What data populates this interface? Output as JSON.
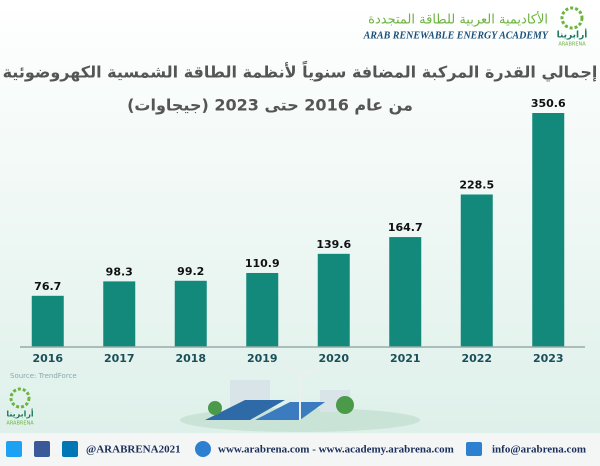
{
  "header": {
    "academy_ar": "الأكاديمية العربية للطاقة المتجددة",
    "academy_en": "ARAB RENEWABLE ENERGY ACADEMY",
    "logo_ar": "أرابرينا",
    "logo_en": "ARABRENA"
  },
  "chart_data": {
    "type": "bar",
    "title": "إجمالي القدرة المركبة المضافة سنوياً لأنظمة الطاقة الشمسية الكهروضوئية",
    "subtitle": "من عام 2016 حتى 2023 (جيجاوات)",
    "categories": [
      "2016",
      "2017",
      "2018",
      "2019",
      "2020",
      "2021",
      "2022",
      "2023"
    ],
    "values": [
      76.7,
      98.3,
      99.2,
      110.9,
      139.6,
      164.7,
      228.5,
      350.6
    ],
    "color": "#12897a",
    "source": "Source: TrendForce"
  },
  "footer": {
    "social": "@ARABRENA2021",
    "websites": "www.arabrena.com - www.academy.arabrena.com",
    "email": "info@arabrena.com",
    "logo_ar": "أرابرينا",
    "logo_en": "ARABRENA"
  }
}
